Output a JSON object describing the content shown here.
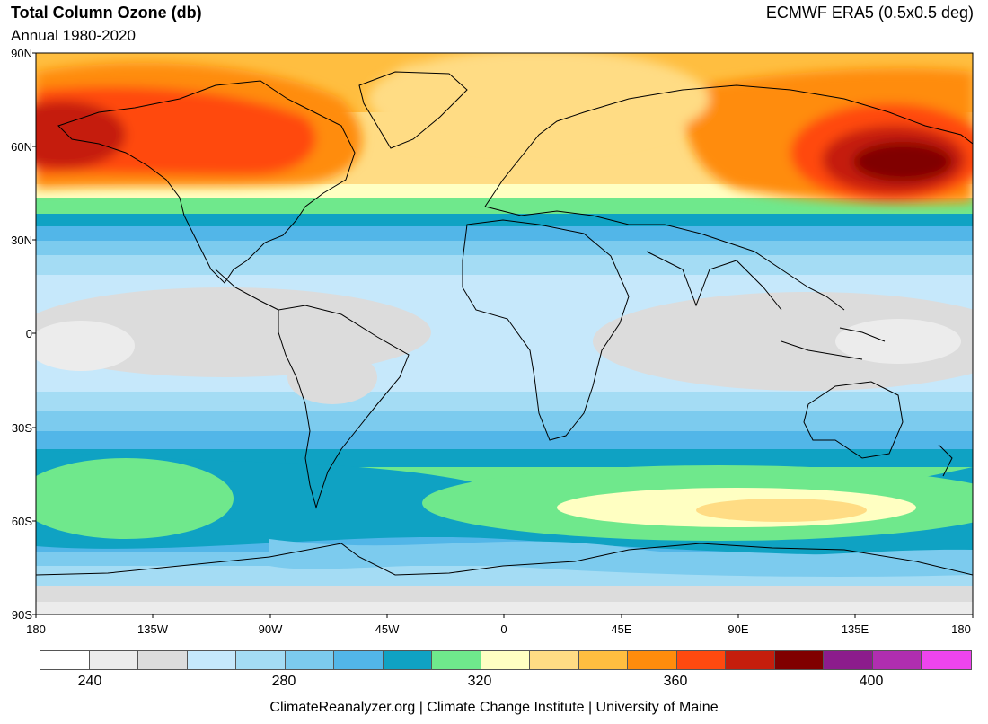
{
  "header": {
    "title": "Total Column Ozone (db)",
    "subtitle": "Annual 1980-2020",
    "source": "ECMWF ERA5 (0.5x0.5 deg)"
  },
  "axes": {
    "y_ticks": [
      "90N",
      "60N",
      "30N",
      "0",
      "30S",
      "60S",
      "90S"
    ],
    "x_ticks": [
      "180",
      "135W",
      "90W",
      "45W",
      "0",
      "45E",
      "90E",
      "135E",
      "180"
    ]
  },
  "colorbar": {
    "colors": [
      "#ffffff",
      "#ececec",
      "#dcdcdc",
      "#c6e8fb",
      "#a4dcf4",
      "#7ccbee",
      "#52b6e8",
      "#0fa2c3",
      "#6fe88c",
      "#ffffc2",
      "#ffdc84",
      "#ffbe40",
      "#ff8c0c",
      "#ff4a0f",
      "#c51e0c",
      "#800000",
      "#8c1c8c",
      "#b02eb0",
      "#ee44ee"
    ],
    "labels": [
      "240",
      "280",
      "320",
      "360",
      "400"
    ]
  },
  "footer": "ClimateReanalyzer.org | Climate Change Institute | University of Maine"
}
